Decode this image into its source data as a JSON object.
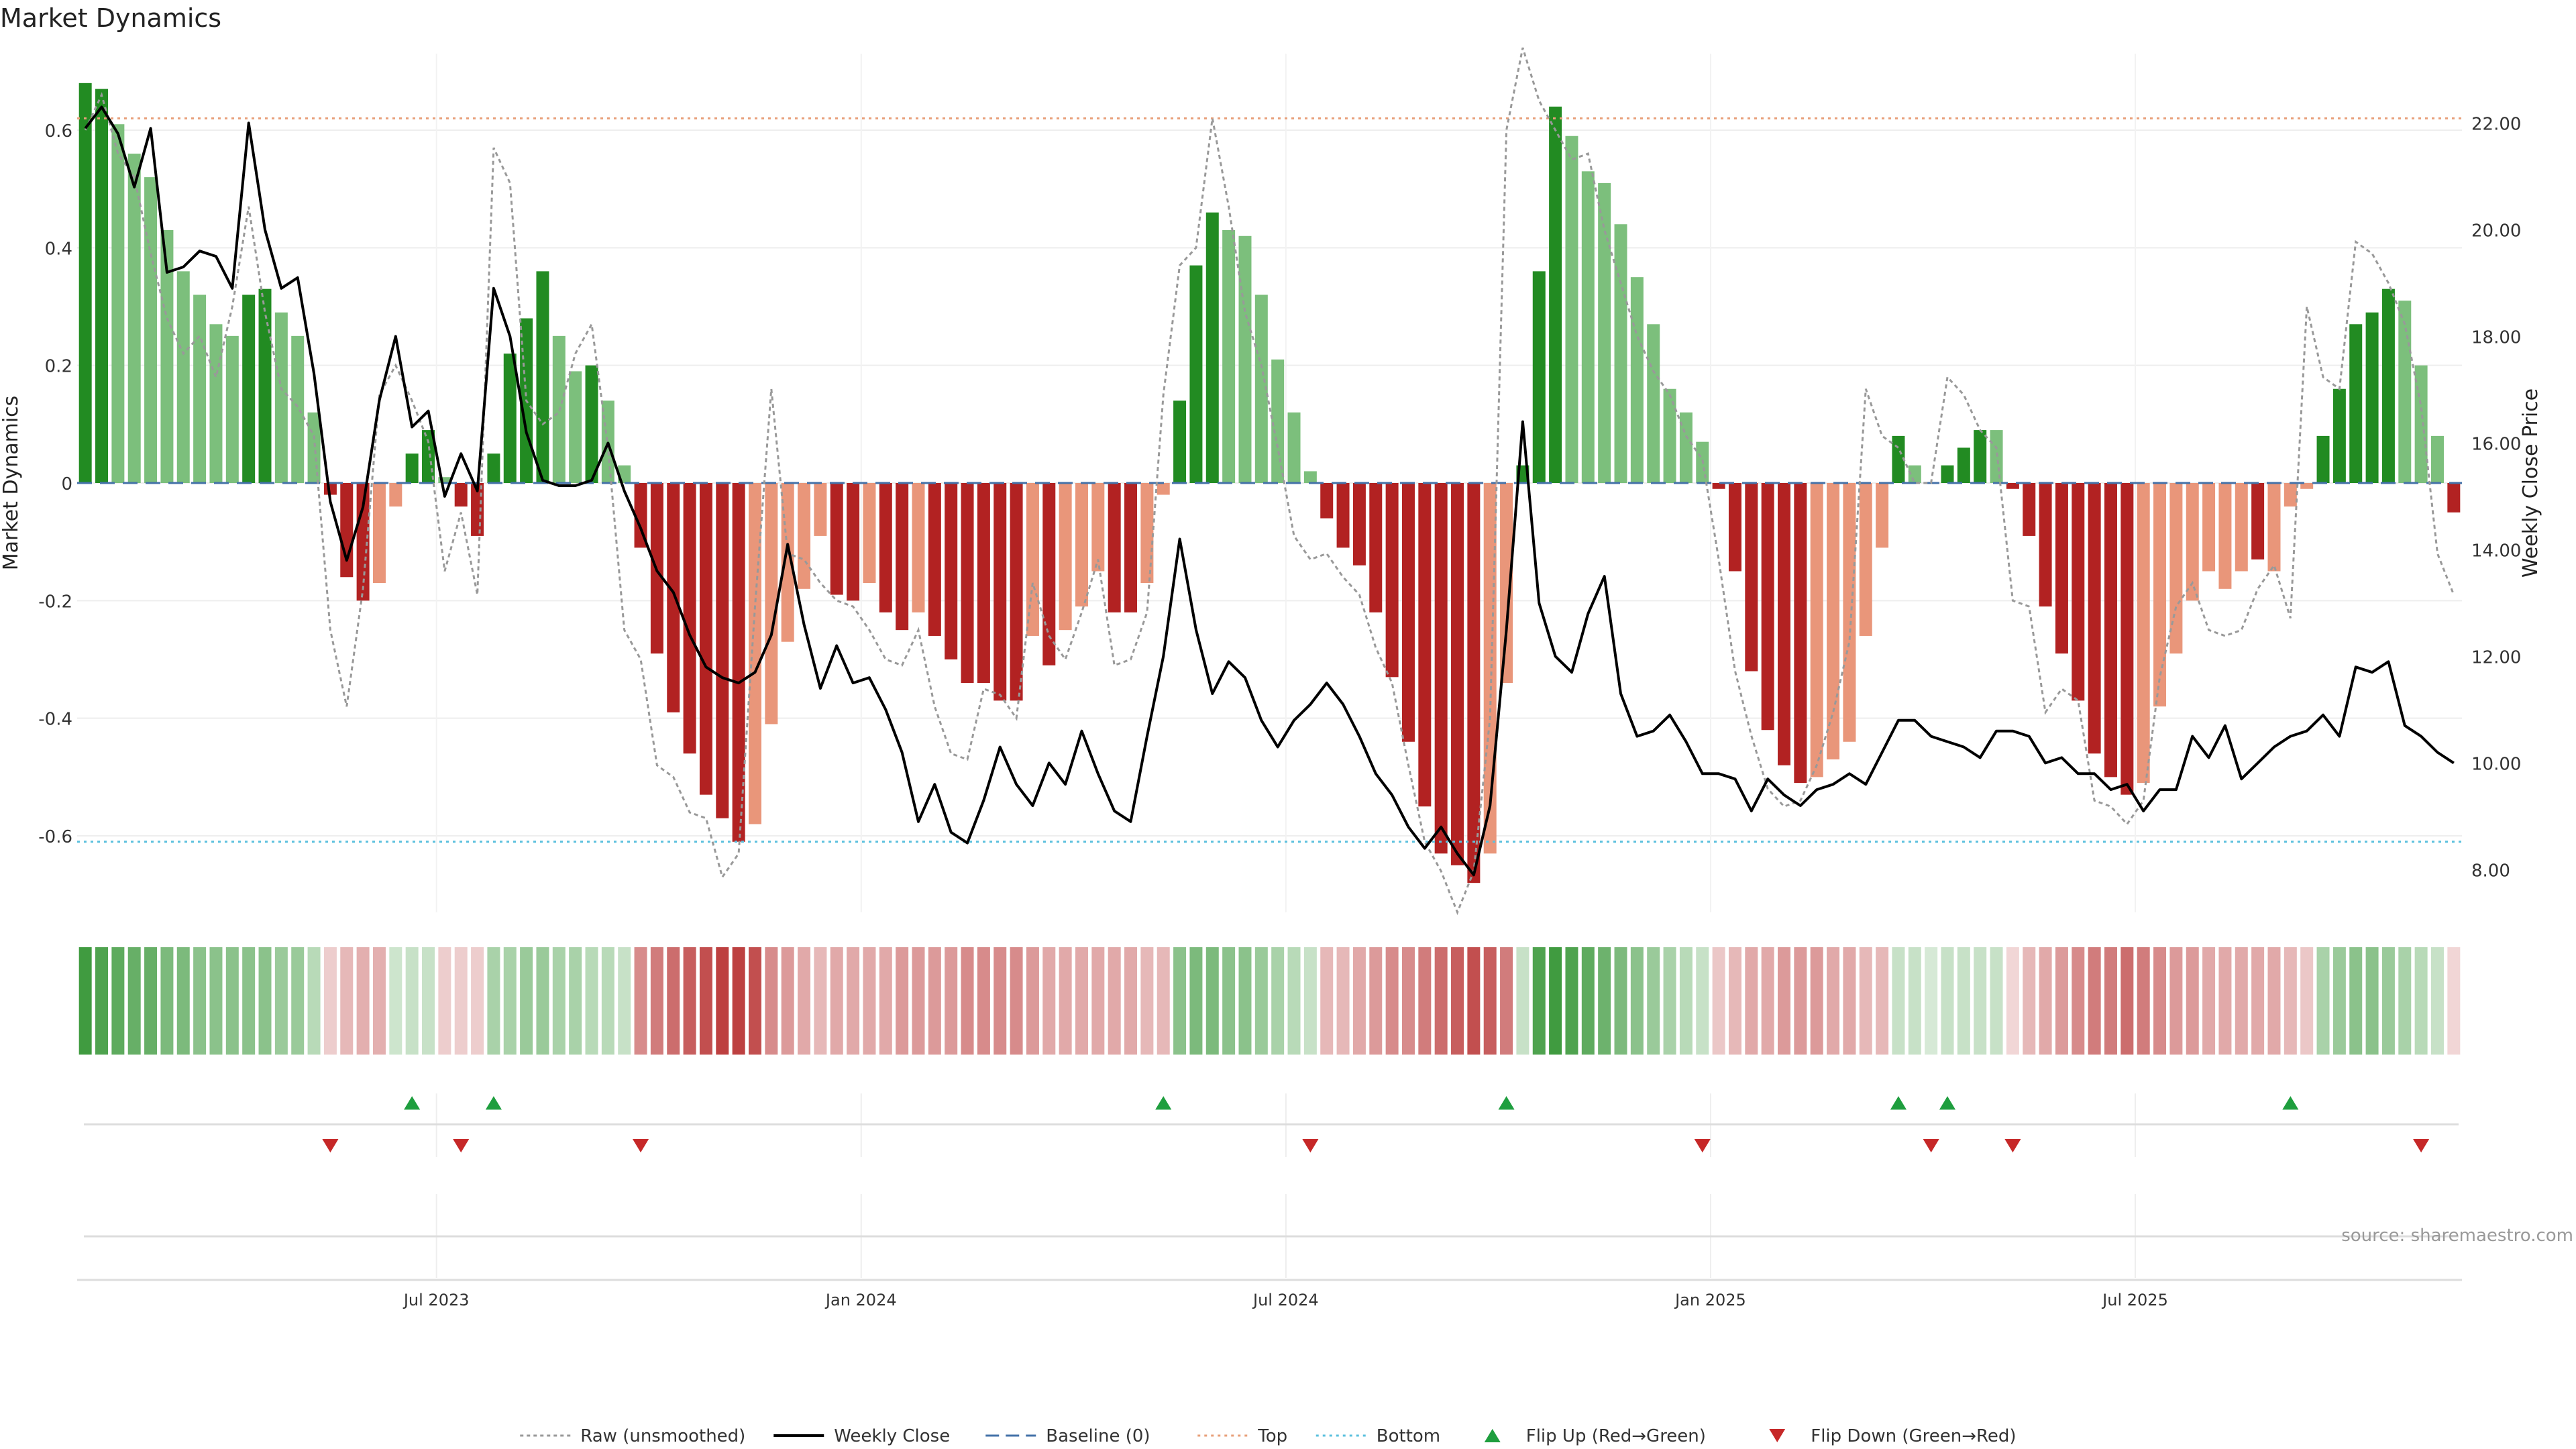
{
  "title": "Market Dynamics",
  "source": "source: sharemaestro.com",
  "axes": {
    "left_label": "Market Dynamics",
    "right_label": "Weekly Close Price",
    "left_range": [
      -0.73,
      0.73
    ],
    "right_range": [
      7.2,
      23.3
    ],
    "left_ticks": [
      -0.6,
      -0.4,
      -0.2,
      0,
      0.2,
      0.4,
      0.6
    ],
    "left_tick_labels": [
      "-0.6",
      "-0.4",
      "-0.2",
      "0",
      "0.2",
      "0.4",
      "0.6"
    ],
    "right_ticks": [
      8,
      10,
      12,
      14,
      16,
      18,
      20,
      22
    ],
    "right_tick_labels": [
      "8.00",
      "10.00",
      "12.00",
      "14.00",
      "16.00",
      "18.00",
      "20.00",
      "22.00"
    ],
    "x_ticks": [
      22,
      48,
      74,
      100,
      126
    ],
    "x_tick_labels": [
      "Jul 2023",
      "Jan 2024",
      "Jul 2024",
      "Jan 2025",
      "Jul 2025"
    ]
  },
  "legend": [
    {
      "key": "raw",
      "label": "Raw (unsmoothed)"
    },
    {
      "key": "close",
      "label": "Weekly Close"
    },
    {
      "key": "baseline",
      "label": "Baseline (0)"
    },
    {
      "key": "top",
      "label": "Top"
    },
    {
      "key": "bottom",
      "label": "Bottom"
    },
    {
      "key": "flip_up",
      "label": "Flip Up (Red→Green)"
    },
    {
      "key": "flip_down",
      "label": "Flip Down (Green→Red)"
    }
  ],
  "colors": {
    "strong_green": "#228b22",
    "light_green": "#7cbf7c",
    "strong_red": "#b22222",
    "light_red": "#e9967a",
    "raw": "#999999",
    "close": "#000000",
    "baseline": "#4472a8",
    "top": "#e8a07a",
    "bottom": "#5bc0de",
    "flip_up": "#1e9e3e",
    "flip_down": "#c62828"
  },
  "chart_data": {
    "type": "bar",
    "x_index_meaning": "weekly observations",
    "top_level": 0.62,
    "bottom_level": -0.61,
    "baseline": 0,
    "bars": [
      0.68,
      0.67,
      0.61,
      0.56,
      0.52,
      0.43,
      0.36,
      0.32,
      0.27,
      0.25,
      0.32,
      0.33,
      0.29,
      0.25,
      0.12,
      -0.02,
      -0.16,
      -0.2,
      -0.17,
      -0.04,
      0.05,
      0.09,
      0.01,
      -0.04,
      -0.09,
      0.05,
      0.22,
      0.28,
      0.36,
      0.25,
      0.19,
      0.2,
      0.14,
      0.03,
      -0.11,
      -0.29,
      -0.39,
      -0.46,
      -0.53,
      -0.57,
      -0.61,
      -0.58,
      -0.41,
      -0.27,
      -0.18,
      -0.09,
      -0.19,
      -0.2,
      -0.17,
      -0.22,
      -0.25,
      -0.22,
      -0.26,
      -0.3,
      -0.34,
      -0.34,
      -0.37,
      -0.37,
      -0.26,
      -0.31,
      -0.25,
      -0.21,
      -0.15,
      -0.22,
      -0.22,
      -0.17,
      -0.02,
      0.14,
      0.37,
      0.46,
      0.43,
      0.42,
      0.32,
      0.21,
      0.12,
      0.02,
      -0.06,
      -0.11,
      -0.14,
      -0.22,
      -0.33,
      -0.44,
      -0.55,
      -0.63,
      -0.65,
      -0.68,
      -0.63,
      -0.34,
      0.03,
      0.36,
      0.64,
      0.59,
      0.53,
      0.51,
      0.44,
      0.35,
      0.27,
      0.16,
      0.12,
      0.07,
      -0.01,
      -0.15,
      -0.32,
      -0.42,
      -0.48,
      -0.51,
      -0.5,
      -0.47,
      -0.44,
      -0.26,
      -0.11,
      0.08,
      0.03,
      0.0,
      0.03,
      0.06,
      0.09,
      0.09,
      -0.01,
      -0.09,
      -0.21,
      -0.29,
      -0.37,
      -0.46,
      -0.5,
      -0.53,
      -0.51,
      -0.38,
      -0.29,
      -0.2,
      -0.15,
      -0.18,
      -0.15,
      -0.13,
      -0.15,
      -0.04,
      -0.01,
      0.08,
      0.16,
      0.27,
      0.29,
      0.33,
      0.31,
      0.2,
      0.08,
      -0.05
    ],
    "bar_strength": [
      1,
      1,
      0,
      0,
      0,
      0,
      0,
      0,
      0,
      0,
      1,
      1,
      0,
      0,
      0,
      1,
      1,
      1,
      0,
      0,
      1,
      1,
      0,
      1,
      1,
      1,
      1,
      1,
      1,
      0,
      0,
      1,
      0,
      0,
      1,
      1,
      1,
      1,
      1,
      1,
      1,
      0,
      0,
      0,
      0,
      0,
      1,
      1,
      0,
      1,
      1,
      0,
      1,
      1,
      1,
      1,
      1,
      1,
      0,
      1,
      0,
      0,
      0,
      1,
      1,
      0,
      0,
      1,
      1,
      1,
      0,
      0,
      0,
      0,
      0,
      0,
      1,
      1,
      1,
      1,
      1,
      1,
      1,
      1,
      1,
      1,
      0,
      0,
      1,
      1,
      1,
      0,
      0,
      0,
      0,
      0,
      0,
      0,
      0,
      0,
      1,
      1,
      1,
      1,
      1,
      1,
      0,
      0,
      0,
      0,
      0,
      1,
      0,
      0,
      1,
      1,
      1,
      0,
      1,
      1,
      1,
      1,
      1,
      1,
      1,
      1,
      0,
      0,
      0,
      0,
      0,
      0,
      0,
      1,
      0,
      0,
      0,
      1,
      1,
      1,
      1,
      1,
      0,
      0,
      0,
      1
    ],
    "raw": [
      0.6,
      0.66,
      0.56,
      0.52,
      0.39,
      0.28,
      0.22,
      0.25,
      0.18,
      0.3,
      0.47,
      0.29,
      0.16,
      0.13,
      0.08,
      -0.25,
      -0.38,
      -0.18,
      0.15,
      0.2,
      0.14,
      0.07,
      -0.15,
      -0.05,
      -0.19,
      0.57,
      0.51,
      0.14,
      0.1,
      0.12,
      0.22,
      0.27,
      0.06,
      -0.25,
      -0.3,
      -0.48,
      -0.5,
      -0.56,
      -0.57,
      -0.67,
      -0.63,
      -0.21,
      0.16,
      -0.12,
      -0.13,
      -0.17,
      -0.2,
      -0.21,
      -0.25,
      -0.3,
      -0.31,
      -0.25,
      -0.38,
      -0.46,
      -0.47,
      -0.35,
      -0.36,
      -0.4,
      -0.17,
      -0.26,
      -0.3,
      -0.22,
      -0.13,
      -0.31,
      -0.3,
      -0.22,
      0.15,
      0.37,
      0.4,
      0.62,
      0.47,
      0.29,
      0.2,
      0.06,
      -0.09,
      -0.13,
      -0.12,
      -0.16,
      -0.19,
      -0.28,
      -0.34,
      -0.48,
      -0.61,
      -0.66,
      -0.73,
      -0.66,
      -0.4,
      0.6,
      0.74,
      0.65,
      0.6,
      0.55,
      0.56,
      0.43,
      0.34,
      0.25,
      0.19,
      0.15,
      0.08,
      0.04,
      -0.13,
      -0.32,
      -0.43,
      -0.52,
      -0.55,
      -0.54,
      -0.48,
      -0.39,
      -0.27,
      0.16,
      0.08,
      0.06,
      0.0,
      0.0,
      0.18,
      0.15,
      0.09,
      0.06,
      -0.2,
      -0.21,
      -0.39,
      -0.35,
      -0.37,
      -0.54,
      -0.55,
      -0.58,
      -0.54,
      -0.33,
      -0.21,
      -0.17,
      -0.25,
      -0.26,
      -0.25,
      -0.18,
      -0.14,
      -0.23,
      0.3,
      0.18,
      0.16,
      0.41,
      0.39,
      0.34,
      0.27,
      0.13,
      -0.12,
      -0.19
    ],
    "close": [
      21.9,
      22.3,
      21.8,
      20.8,
      21.9,
      19.2,
      19.3,
      19.6,
      19.5,
      18.9,
      22.0,
      20.0,
      18.9,
      19.1,
      17.3,
      14.9,
      13.8,
      14.8,
      16.8,
      18.0,
      16.3,
      16.6,
      15.0,
      15.8,
      15.1,
      18.9,
      18.0,
      16.2,
      15.3,
      15.2,
      15.2,
      15.3,
      16.0,
      15.1,
      14.4,
      13.6,
      13.2,
      12.4,
      11.8,
      11.6,
      11.5,
      11.7,
      12.4,
      14.1,
      12.6,
      11.4,
      12.2,
      11.5,
      11.6,
      11.0,
      10.2,
      8.9,
      9.6,
      8.7,
      8.5,
      9.3,
      10.3,
      9.6,
      9.2,
      10.0,
      9.6,
      10.6,
      9.8,
      9.1,
      8.9,
      10.5,
      12.0,
      14.2,
      12.5,
      11.3,
      11.9,
      11.6,
      10.8,
      10.3,
      10.8,
      11.1,
      11.5,
      11.1,
      10.5,
      9.8,
      9.4,
      8.8,
      8.4,
      8.8,
      8.3,
      7.9,
      9.2,
      12.5,
      16.4,
      13.0,
      12.0,
      11.7,
      12.8,
      13.5,
      11.3,
      10.5,
      10.6,
      10.9,
      10.4,
      9.8,
      9.8,
      9.7,
      9.1,
      9.7,
      9.4,
      9.2,
      9.5,
      9.6,
      9.8,
      9.6,
      10.2,
      10.8,
      10.8,
      10.5,
      10.4,
      10.3,
      10.1,
      10.6,
      10.6,
      10.5,
      10.0,
      10.1,
      9.8,
      9.8,
      9.5,
      9.6,
      9.1,
      9.5,
      9.5,
      10.5,
      10.1,
      10.7,
      9.7,
      10.0,
      10.3,
      10.5,
      10.6,
      10.9,
      10.5,
      11.8,
      11.7,
      11.9,
      10.7,
      10.5,
      10.2,
      10.0
    ],
    "regime_strip": [
      0.55,
      0.5,
      0.45,
      0.42,
      0.42,
      0.35,
      0.35,
      0.3,
      0.3,
      0.3,
      0.3,
      0.3,
      0.25,
      0.25,
      0.15,
      -0.08,
      -0.15,
      -0.18,
      -0.18,
      0.08,
      0.1,
      0.1,
      -0.08,
      -0.08,
      -0.08,
      0.2,
      0.2,
      0.25,
      0.25,
      0.2,
      0.2,
      0.15,
      0.15,
      0.1,
      -0.3,
      -0.35,
      -0.4,
      -0.45,
      -0.5,
      -0.55,
      -0.55,
      -0.5,
      -0.3,
      -0.25,
      -0.2,
      -0.15,
      -0.2,
      -0.2,
      -0.2,
      -0.2,
      -0.25,
      -0.25,
      -0.25,
      -0.25,
      -0.3,
      -0.3,
      -0.3,
      -0.3,
      -0.25,
      -0.2,
      -0.2,
      -0.2,
      -0.2,
      -0.2,
      -0.2,
      -0.15,
      -0.15,
      0.3,
      0.35,
      0.35,
      0.3,
      0.3,
      0.25,
      0.2,
      0.15,
      0.1,
      -0.15,
      -0.15,
      -0.2,
      -0.25,
      -0.3,
      -0.3,
      -0.35,
      -0.4,
      -0.45,
      -0.5,
      -0.45,
      -0.35,
      0.1,
      0.5,
      0.55,
      0.5,
      0.45,
      0.4,
      0.35,
      0.3,
      0.25,
      0.2,
      0.15,
      0.1,
      -0.1,
      -0.15,
      -0.2,
      -0.2,
      -0.25,
      -0.25,
      -0.25,
      -0.2,
      -0.2,
      -0.15,
      -0.15,
      0.1,
      0.1,
      0.05,
      0.1,
      0.1,
      0.1,
      0.1,
      -0.05,
      -0.15,
      -0.2,
      -0.25,
      -0.3,
      -0.35,
      -0.35,
      -0.4,
      -0.35,
      -0.3,
      -0.25,
      -0.25,
      -0.2,
      -0.2,
      -0.2,
      -0.2,
      -0.2,
      -0.15,
      -0.1,
      0.2,
      0.25,
      0.3,
      0.3,
      0.25,
      0.2,
      0.15,
      0.1,
      -0.05
    ],
    "flip_up_idx": [
      20,
      25,
      66,
      87,
      111,
      114,
      135
    ],
    "flip_down_idx": [
      15,
      23,
      34,
      75,
      99,
      113,
      118,
      143
    ]
  }
}
